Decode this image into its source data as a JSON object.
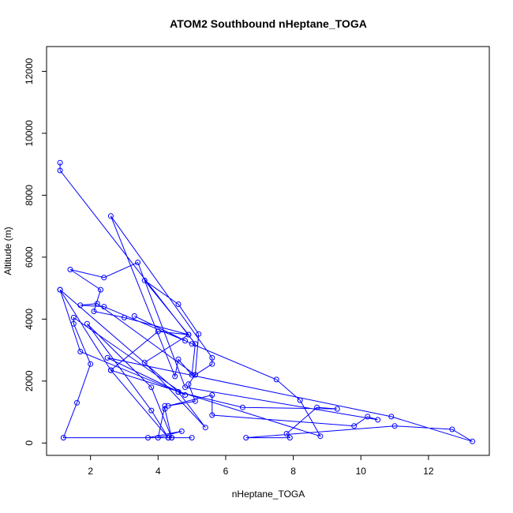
{
  "chart_data": {
    "type": "line",
    "title": "ATOM2 Southbound nHeptane_TOGA",
    "xlabel": "nHeptane_TOGA",
    "ylabel": "Altitude (m)",
    "xlim": [
      0.7,
      13.8
    ],
    "ylim": [
      -400,
      12800
    ],
    "xticks": [
      2,
      4,
      6,
      8,
      10,
      12
    ],
    "yticks": [
      0,
      2000,
      4000,
      6000,
      8000,
      10000,
      12000
    ],
    "marker": "open-circle",
    "grid": false,
    "series": [
      {
        "color": "#0000ff",
        "points": [
          [
            1.1,
            9050
          ],
          [
            1.1,
            8800
          ],
          [
            5.1,
            3200
          ],
          [
            5.0,
            2200
          ],
          [
            4.6,
            2700
          ],
          [
            4.5,
            2150
          ],
          [
            2.6,
            7330
          ],
          [
            5.6,
            2750
          ],
          [
            5.6,
            2550
          ],
          [
            5.1,
            2200
          ],
          [
            4.9,
            1900
          ],
          [
            5.1,
            1350
          ],
          [
            4.3,
            1200
          ],
          [
            5.6,
            1550
          ],
          [
            5.6,
            900
          ],
          [
            9.8,
            550
          ],
          [
            10.2,
            850
          ],
          [
            10.5,
            750
          ],
          [
            4.8,
            1800
          ],
          [
            3.4,
            5830
          ],
          [
            2.4,
            5340
          ],
          [
            1.4,
            5600
          ],
          [
            2.3,
            4950
          ],
          [
            2.1,
            4250
          ],
          [
            3.0,
            4050
          ],
          [
            4.9,
            3500
          ],
          [
            3.6,
            5250
          ],
          [
            4.6,
            4480
          ],
          [
            5.2,
            3520
          ],
          [
            5.1,
            2200
          ],
          [
            2.2,
            4500
          ],
          [
            1.7,
            4450
          ],
          [
            2.4,
            4400
          ],
          [
            4.8,
            3300
          ],
          [
            3.3,
            4100
          ],
          [
            5.0,
            3200
          ],
          [
            7.5,
            2050
          ],
          [
            8.2,
            1380
          ],
          [
            8.8,
            220
          ],
          [
            2.6,
            2350
          ],
          [
            1.1,
            4950
          ],
          [
            4.6,
            1650
          ],
          [
            6.5,
            1150
          ],
          [
            9.3,
            1100
          ],
          [
            8.7,
            1150
          ],
          [
            7.8,
            300
          ],
          [
            7.9,
            170
          ],
          [
            6.6,
            170
          ],
          [
            11.0,
            550
          ],
          [
            12.7,
            440
          ],
          [
            13.3,
            50
          ],
          [
            10.9,
            850
          ],
          [
            2.5,
            2750
          ],
          [
            4.8,
            1550
          ],
          [
            1.5,
            4050
          ],
          [
            1.5,
            3850
          ],
          [
            2.0,
            2550
          ],
          [
            1.6,
            1300
          ],
          [
            1.2,
            170
          ],
          [
            5.0,
            170
          ],
          [
            4.4,
            170
          ],
          [
            4.2,
            1100
          ],
          [
            4.2,
            1200
          ],
          [
            4.0,
            170
          ],
          [
            4.7,
            380
          ],
          [
            3.7,
            170
          ],
          [
            4.3,
            170
          ],
          [
            4.4,
            170
          ],
          [
            3.8,
            1800
          ],
          [
            1.9,
            3850
          ],
          [
            3.8,
            1050
          ],
          [
            4.3,
            170
          ],
          [
            2.6,
            2350
          ],
          [
            4.0,
            3600
          ],
          [
            4.9,
            3500
          ],
          [
            3.6,
            2600
          ],
          [
            5.4,
            500
          ],
          [
            4.6,
            1650
          ],
          [
            1.7,
            2950
          ],
          [
            1.1,
            4950
          ]
        ]
      }
    ]
  }
}
